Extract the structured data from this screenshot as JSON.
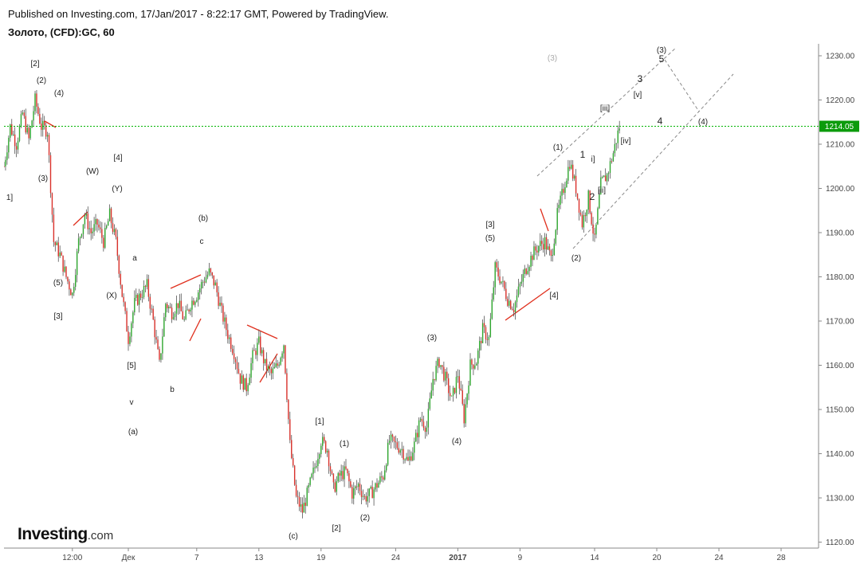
{
  "header": {
    "published": "Published on Investing.com, 17/Jan/2017 - 8:22:17 GMT, Powered by TradingView.",
    "symbol": "Золото, (CFD):GC, 60"
  },
  "logo": {
    "main": "Investing",
    "suffix": ".com"
  },
  "colors": {
    "up": "#2ea62e",
    "down": "#d9312b",
    "wick": "#555555",
    "priceLine": "#00b400",
    "priceTag": "#0b9b0b",
    "channel": "#888888",
    "trendRed": "#e0301e"
  },
  "chart_data": {
    "type": "candlestick",
    "ylim": [
      1118,
      1233
    ],
    "y_ticks": [
      "1230.00",
      "1220.00",
      "1210.00",
      "1200.00",
      "1190.00",
      "1180.00",
      "1170.00",
      "1160.00",
      "1150.00",
      "1140.00",
      "1130.00",
      "1120.00"
    ],
    "x_ticks": [
      {
        "label": "12:00",
        "t": 11
      },
      {
        "label": "Дек",
        "t": 20
      },
      {
        "label": "7",
        "t": 31
      },
      {
        "label": "13",
        "t": 41
      },
      {
        "label": "19",
        "t": 51
      },
      {
        "label": "24",
        "t": 63
      },
      {
        "label": "2017",
        "t": 73,
        "bold": true
      },
      {
        "label": "9",
        "t": 83
      },
      {
        "label": "14",
        "t": 95
      },
      {
        "label": "20",
        "t": 105
      },
      {
        "label": "24",
        "t": 115
      },
      {
        "label": "28",
        "t": 125
      }
    ],
    "current_price": "1214.05",
    "price_anchors": [
      [
        0,
        1205
      ],
      [
        1,
        1214
      ],
      [
        2,
        1210
      ],
      [
        3,
        1217
      ],
      [
        4,
        1211
      ],
      [
        5,
        1220
      ],
      [
        6,
        1214
      ],
      [
        7,
        1213
      ],
      [
        8,
        1188
      ],
      [
        9,
        1185
      ],
      [
        10,
        1180
      ],
      [
        11,
        1176
      ],
      [
        12,
        1188
      ],
      [
        13,
        1194
      ],
      [
        14,
        1190
      ],
      [
        15,
        1192
      ],
      [
        16,
        1188
      ],
      [
        17,
        1194
      ],
      [
        18,
        1188
      ],
      [
        19,
        1176
      ],
      [
        20,
        1166
      ],
      [
        21,
        1174
      ],
      [
        22,
        1176
      ],
      [
        23,
        1178
      ],
      [
        24,
        1170
      ],
      [
        25,
        1160
      ],
      [
        26,
        1174
      ],
      [
        27,
        1172
      ],
      [
        28,
        1174
      ],
      [
        29,
        1170
      ],
      [
        30,
        1174
      ],
      [
        31,
        1176
      ],
      [
        32,
        1179
      ],
      [
        33,
        1181
      ],
      [
        34,
        1178
      ],
      [
        35,
        1172
      ],
      [
        36,
        1167
      ],
      [
        37,
        1163
      ],
      [
        38,
        1157
      ],
      [
        39,
        1155
      ],
      [
        40,
        1162
      ],
      [
        41,
        1165
      ],
      [
        42,
        1160
      ],
      [
        43,
        1158
      ],
      [
        44,
        1160
      ],
      [
        45,
        1165
      ],
      [
        46,
        1142
      ],
      [
        47,
        1130
      ],
      [
        48,
        1127
      ],
      [
        49,
        1132
      ],
      [
        50,
        1137
      ],
      [
        51,
        1143
      ],
      [
        52,
        1141
      ],
      [
        53,
        1132
      ],
      [
        54,
        1135
      ],
      [
        55,
        1136
      ],
      [
        56,
        1131
      ],
      [
        57,
        1133
      ],
      [
        58,
        1130
      ],
      [
        59,
        1131
      ],
      [
        60,
        1133
      ],
      [
        61,
        1135
      ],
      [
        62,
        1143
      ],
      [
        63,
        1142
      ],
      [
        64,
        1141
      ],
      [
        65,
        1138
      ],
      [
        66,
        1142
      ],
      [
        67,
        1148
      ],
      [
        68,
        1146
      ],
      [
        69,
        1157
      ],
      [
        70,
        1161
      ],
      [
        71,
        1157
      ],
      [
        72,
        1152
      ],
      [
        73,
        1158
      ],
      [
        74,
        1148
      ],
      [
        75,
        1160
      ],
      [
        76,
        1161
      ],
      [
        77,
        1168
      ],
      [
        78,
        1166
      ],
      [
        79,
        1182
      ],
      [
        80,
        1179
      ],
      [
        81,
        1175
      ],
      [
        82,
        1173
      ],
      [
        83,
        1178
      ],
      [
        84,
        1182
      ],
      [
        85,
        1185
      ],
      [
        86,
        1187
      ],
      [
        87,
        1188
      ],
      [
        88,
        1184
      ],
      [
        89,
        1194
      ],
      [
        90,
        1200
      ],
      [
        91,
        1206
      ],
      [
        92,
        1200
      ],
      [
        93,
        1192
      ],
      [
        94,
        1198
      ],
      [
        95,
        1188
      ],
      [
        96,
        1201
      ],
      [
        97,
        1203
      ],
      [
        98,
        1208
      ],
      [
        99,
        1214
      ]
    ]
  },
  "waves": {
    "w1": "[2]",
    "w2": "(2)",
    "w3": "(4)",
    "w4": "(3)",
    "w5": "1]",
    "w6": "(W)",
    "w7": "[4]",
    "w8": "(Y)",
    "w9": "(5)",
    "w10": "[3]",
    "w11": "(X)",
    "w12": "a",
    "w13": "[5]",
    "w14": "v",
    "w15": "(a)",
    "w16": "b",
    "w17": "(b)",
    "w18": "c",
    "w19": "[1]",
    "w20": "(1)",
    "w21": "(c)",
    "w22": "[2]",
    "w23": "(2)",
    "w24": "(3)",
    "w25": "(4)",
    "w26": "[3]",
    "w27": "(5)",
    "w28": "[4]",
    "w29": "(1)",
    "w30": "1",
    "w31": "i]",
    "w32": "2",
    "w33": "[ii]",
    "w34": "(2)",
    "w35": "[iii]",
    "w36": "[iv]",
    "w37": "[v]",
    "w38": "3",
    "w39": "5",
    "w40": "(3)",
    "w41": "(3)",
    "w42": "4",
    "w43": "(4)"
  }
}
